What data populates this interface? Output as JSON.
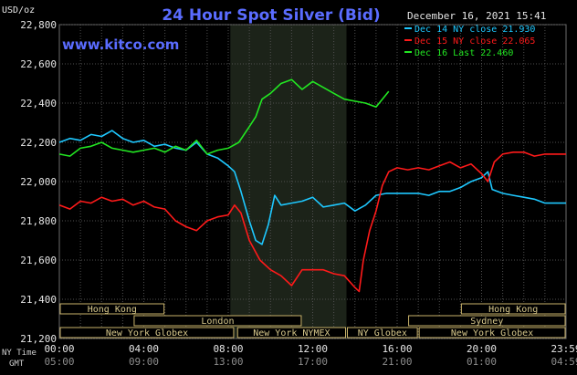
{
  "chart_data": {
    "type": "line",
    "title": "24 Hour Spot Silver (Bid)",
    "unit_label": "USD/oz",
    "timestamp": "December 16, 2021 15:41",
    "watermark": "www.kitco.com",
    "ylim": [
      21.2,
      22.8
    ],
    "y_ticks": [
      21.2,
      21.4,
      21.6,
      21.8,
      22.0,
      22.2,
      22.4,
      22.6,
      22.8
    ],
    "y_tick_labels": [
      "21,200",
      "21,400",
      "21,600",
      "21,800",
      "22,000",
      "22,200",
      "22,400",
      "22,600",
      "22,800"
    ],
    "x_range_hours": [
      0,
      24
    ],
    "x_ticks": [
      0,
      4,
      8,
      12,
      16,
      20,
      24
    ],
    "x_tick_labels_ny": [
      "00:00",
      "04:00",
      "08:00",
      "12:00",
      "16:00",
      "20:00",
      "23:59"
    ],
    "x_tick_labels_gmt": [
      "05:00",
      "09:00",
      "13:00",
      "17:00",
      "21:00",
      "01:00",
      "04:59"
    ],
    "row_label_ny": "NY Time",
    "row_label_gmt": "GMT",
    "grid": true,
    "legend_position": "top-right",
    "shaded_period_hours": [
      8.1,
      13.6
    ],
    "series": [
      {
        "name": "Dec 14 NY close 21.930",
        "color": "#1ec8ff",
        "x": [
          0,
          0.5,
          1,
          1.5,
          2,
          2.5,
          3,
          3.5,
          4,
          4.5,
          5,
          5.5,
          6,
          6.5,
          7,
          7.5,
          8,
          8.3,
          8.6,
          9,
          9.3,
          9.6,
          9.9,
          10.2,
          10.5,
          11,
          11.5,
          12,
          12.5,
          13,
          13.5,
          14,
          14.5,
          15,
          15.5,
          16,
          16.5,
          17,
          17.5,
          18,
          18.5,
          19,
          19.5,
          20,
          20.3,
          20.5,
          21,
          21.5,
          22,
          22.5,
          23,
          23.5,
          24
        ],
        "y": [
          22.2,
          22.22,
          22.21,
          22.24,
          22.23,
          22.26,
          22.22,
          22.2,
          22.21,
          22.18,
          22.19,
          22.17,
          22.16,
          22.2,
          22.14,
          22.12,
          22.08,
          22.05,
          21.95,
          21.8,
          21.7,
          21.68,
          21.78,
          21.93,
          21.88,
          21.89,
          21.9,
          21.92,
          21.87,
          21.88,
          21.89,
          21.85,
          21.88,
          21.93,
          21.94,
          21.94,
          21.94,
          21.94,
          21.93,
          21.95,
          21.95,
          21.97,
          22.0,
          22.02,
          22.05,
          21.96,
          21.94,
          21.93,
          21.92,
          21.91,
          21.89,
          21.89,
          21.89
        ]
      },
      {
        "name": "Dec 15 NY close 22.065",
        "color": "#ff1a1a",
        "x": [
          0,
          0.5,
          1,
          1.5,
          2,
          2.5,
          3,
          3.5,
          4,
          4.5,
          5,
          5.5,
          6,
          6.5,
          7,
          7.5,
          8,
          8.3,
          8.6,
          9,
          9.5,
          10,
          10.5,
          11,
          11.5,
          12,
          12.5,
          13,
          13.5,
          14,
          14.2,
          14.4,
          14.7,
          15,
          15.3,
          15.6,
          16,
          16.5,
          17,
          17.5,
          18,
          18.5,
          19,
          19.5,
          20,
          20.3,
          20.6,
          21,
          21.5,
          22,
          22.5,
          23,
          23.5,
          24
        ],
        "y": [
          21.88,
          21.86,
          21.9,
          21.89,
          21.92,
          21.9,
          21.91,
          21.88,
          21.9,
          21.87,
          21.86,
          21.8,
          21.77,
          21.75,
          21.8,
          21.82,
          21.83,
          21.88,
          21.84,
          21.7,
          21.6,
          21.55,
          21.52,
          21.47,
          21.55,
          21.55,
          21.55,
          21.53,
          21.52,
          21.46,
          21.44,
          21.6,
          21.75,
          21.85,
          21.98,
          22.05,
          22.07,
          22.06,
          22.07,
          22.06,
          22.08,
          22.1,
          22.07,
          22.09,
          22.04,
          22.0,
          22.1,
          22.14,
          22.15,
          22.15,
          22.13,
          22.14,
          22.14,
          22.14
        ]
      },
      {
        "name": "Dec 16 Last 22.460",
        "color": "#22e622",
        "x": [
          0,
          0.5,
          1,
          1.5,
          2,
          2.5,
          3,
          3.5,
          4,
          4.5,
          5,
          5.5,
          6,
          6.5,
          7,
          7.5,
          8,
          8.5,
          9,
          9.3,
          9.6,
          10,
          10.5,
          11,
          11.5,
          12,
          12.5,
          13,
          13.5,
          14,
          14.5,
          15,
          15.3,
          15.6
        ],
        "y": [
          22.14,
          22.13,
          22.17,
          22.18,
          22.2,
          22.17,
          22.16,
          22.15,
          22.16,
          22.17,
          22.15,
          22.18,
          22.16,
          22.21,
          22.14,
          22.16,
          22.17,
          22.2,
          22.28,
          22.33,
          22.42,
          22.45,
          22.5,
          22.52,
          22.47,
          22.51,
          22.48,
          22.45,
          22.42,
          22.41,
          22.4,
          22.38,
          22.42,
          22.46
        ]
      }
    ],
    "sessions": [
      {
        "name": "Hong Kong",
        "row": 0,
        "start": 0,
        "end": 5.0
      },
      {
        "name": "London",
        "row": 1,
        "start": 3.5,
        "end": 11.5
      },
      {
        "name": "New York Globex",
        "row": 2,
        "start": 0,
        "end": 8.3
      },
      {
        "name": "New York NYMEX",
        "row": 2,
        "start": 8.4,
        "end": 13.6
      },
      {
        "name": "NY Globex",
        "row": 2,
        "start": 13.6,
        "end": 17.0
      },
      {
        "name": "Hong Kong",
        "row": 0,
        "start": 19.0,
        "end": 24.0
      },
      {
        "name": "Sydney",
        "row": 1,
        "start": 16.5,
        "end": 24.0
      },
      {
        "name": "New York Globex",
        "row": 2,
        "start": 17.0,
        "end": 24.0
      }
    ]
  }
}
